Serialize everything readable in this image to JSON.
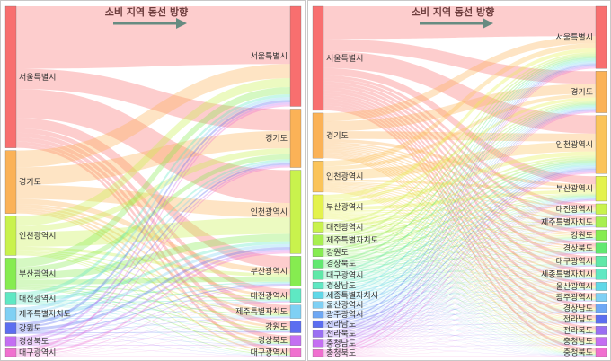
{
  "left_panel": {
    "title": "소비 지역 동선 방향",
    "sources": [
      {
        "label": "서울특별시",
        "color": "#f86f6f",
        "value": 90
      },
      {
        "label": "경기도",
        "color": "#fbb257",
        "value": 40
      },
      {
        "label": "인천광역시",
        "color": "#c9f24d",
        "value": 25
      },
      {
        "label": "부산광역시",
        "color": "#86ec50",
        "value": 20
      },
      {
        "label": "대전광역시",
        "color": "#5fe8c3",
        "value": 8
      },
      {
        "label": "제주특별자치도",
        "color": "#7fd0f4",
        "value": 8
      },
      {
        "label": "강원도",
        "color": "#5c6ef0",
        "value": 7
      },
      {
        "label": "경상북도",
        "color": "#c46ff2",
        "value": 6
      },
      {
        "label": "대구광역시",
        "color": "#f06fcf",
        "value": 5
      }
    ],
    "targets": [
      {
        "label": "서울특별시",
        "color": "#f86f6f",
        "value": 60
      },
      {
        "label": "경기도",
        "color": "#fbb257",
        "value": 35
      },
      {
        "label": "인천광역시",
        "color": "#c9f24d",
        "value": 50
      },
      {
        "label": "부산광역시",
        "color": "#86ec50",
        "value": 18
      },
      {
        "label": "대전광역시",
        "color": "#5fe8c3",
        "value": 8
      },
      {
        "label": "제주특별자치도",
        "color": "#7fd0f4",
        "value": 8
      },
      {
        "label": "강원도",
        "color": "#5c6ef0",
        "value": 7
      },
      {
        "label": "경상북도",
        "color": "#c46ff2",
        "value": 6
      },
      {
        "label": "대구광역시",
        "color": "#f06fcf",
        "value": 5
      }
    ]
  },
  "right_panel": {
    "title": "소비 지역 동선 방향",
    "sources": [
      {
        "label": "서울특별시",
        "color": "#f86f6f",
        "value": 60
      },
      {
        "label": "경기도",
        "color": "#fbb257",
        "value": 26
      },
      {
        "label": "인천광역시",
        "color": "#fbc45a",
        "value": 18
      },
      {
        "label": "부산광역시",
        "color": "#e4f24d",
        "value": 14
      },
      {
        "label": "대전광역시",
        "color": "#c9f24d",
        "value": 6
      },
      {
        "label": "제주특별자치도",
        "color": "#a8ef50",
        "value": 6
      },
      {
        "label": "강원도",
        "color": "#86ec50",
        "value": 5
      },
      {
        "label": "경상북도",
        "color": "#62e870",
        "value": 5
      },
      {
        "label": "대구광역시",
        "color": "#5fe8a8",
        "value": 5
      },
      {
        "label": "경상남도",
        "color": "#5fe8c3",
        "value": 4
      },
      {
        "label": "세종특별자치시",
        "color": "#5fd8e8",
        "value": 4
      },
      {
        "label": "울산광역시",
        "color": "#7fd0f4",
        "value": 4
      },
      {
        "label": "광주광역시",
        "color": "#6fa8f4",
        "value": 4
      },
      {
        "label": "전라남도",
        "color": "#5c6ef0",
        "value": 4
      },
      {
        "label": "전라북도",
        "color": "#9a6ff2",
        "value": 4
      },
      {
        "label": "충청남도",
        "color": "#c46ff2",
        "value": 4
      },
      {
        "label": "충청북도",
        "color": "#f06fcf",
        "value": 4
      }
    ],
    "targets": [
      {
        "label": "서울특별시",
        "color": "#f86f6f",
        "value": 30
      },
      {
        "label": "경기도",
        "color": "#fbb257",
        "value": 20
      },
      {
        "label": "인천광역시",
        "color": "#fbc45a",
        "value": 28
      },
      {
        "label": "부산광역시",
        "color": "#e4f24d",
        "value": 12
      },
      {
        "label": "대전광역시",
        "color": "#c9f24d",
        "value": 5
      },
      {
        "label": "제주특별자치도",
        "color": "#a8ef50",
        "value": 5
      },
      {
        "label": "강원도",
        "color": "#86ec50",
        "value": 5
      },
      {
        "label": "경상북도",
        "color": "#62e870",
        "value": 5
      },
      {
        "label": "대구광역시",
        "color": "#5fe8a8",
        "value": 5
      },
      {
        "label": "세종특별자치시",
        "color": "#5fe8c3",
        "value": 5
      },
      {
        "label": "울산광역시",
        "color": "#5fd8e8",
        "value": 4
      },
      {
        "label": "광주광역시",
        "color": "#7fd0f4",
        "value": 4
      },
      {
        "label": "경상남도",
        "color": "#6fa8f4",
        "value": 4
      },
      {
        "label": "전라남도",
        "color": "#5c6ef0",
        "value": 4
      },
      {
        "label": "전라북도",
        "color": "#9a6ff2",
        "value": 4
      },
      {
        "label": "충청남도",
        "color": "#c46ff2",
        "value": 4
      },
      {
        "label": "충청북도",
        "color": "#f06fcf",
        "value": 4
      }
    ]
  },
  "arrow_color": "#1a9a8a"
}
